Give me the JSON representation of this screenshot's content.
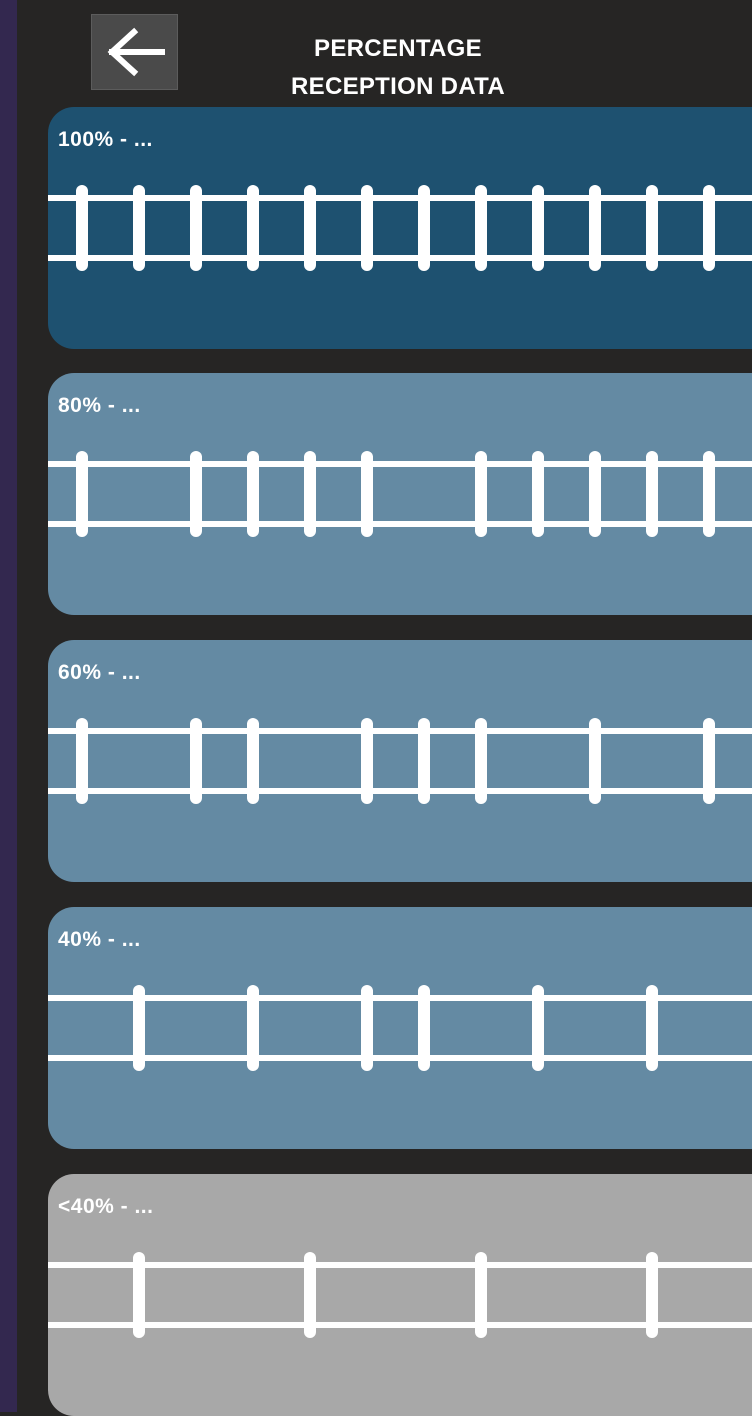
{
  "header": {
    "back_icon": "arrow-left-icon",
    "title_line1": "PERCENTAGE",
    "title_line2": "RECEPTION DATA"
  },
  "colors": {
    "background": "#262524",
    "side_strip": "#33284f",
    "level_100": "#1e5170",
    "level_mid": "#648aa3",
    "level_low": "#a8a8a8",
    "rail": "#ffffff"
  },
  "levels": [
    {
      "label": "100% - ...",
      "ties_present": [
        1,
        1,
        1,
        1,
        1,
        1,
        1,
        1,
        1,
        1,
        1,
        1
      ]
    },
    {
      "label": "80% - ...",
      "ties_present": [
        1,
        0,
        1,
        1,
        1,
        1,
        0,
        1,
        1,
        1,
        1,
        1
      ]
    },
    {
      "label": "60% - ...",
      "ties_present": [
        1,
        0,
        1,
        1,
        0,
        1,
        1,
        1,
        0,
        1,
        0,
        1
      ]
    },
    {
      "label": "40% - ...",
      "ties_present": [
        0,
        1,
        0,
        1,
        0,
        1,
        1,
        0,
        1,
        0,
        1,
        0
      ]
    },
    {
      "label": "<40% - ...",
      "ties_present": [
        0,
        1,
        0,
        0,
        1,
        0,
        0,
        1,
        0,
        0,
        1,
        0
      ]
    }
  ]
}
